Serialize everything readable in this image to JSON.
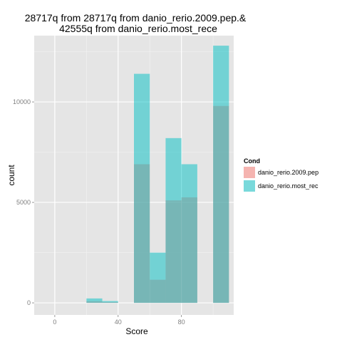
{
  "chart_data": {
    "type": "bar",
    "title_lines": [
      "28717q from  28717q from  danio_rerio.2009.pep.&",
      "42555q from danio_rerio.most_rece"
    ],
    "xlabel": "Score",
    "ylabel": "count",
    "xlim": [
      -13,
      113
    ],
    "ylim": [
      -600,
      13300
    ],
    "x_ticks": [
      0,
      40,
      80
    ],
    "y_ticks": [
      0,
      5000,
      10000
    ],
    "bin_width": 10,
    "overlay": "identity",
    "legend": {
      "title": "Cond",
      "position": "right",
      "entries": [
        "danio_rerio.2009.pep",
        "danio_rerio.most_rec"
      ]
    },
    "series": [
      {
        "name": "danio_rerio.2009.pep",
        "color": "#F8766D",
        "bins": [
          {
            "x0": 20,
            "x1": 30,
            "count": 80
          },
          {
            "x0": 30,
            "x1": 40,
            "count": 40
          },
          {
            "x0": 50,
            "x1": 60,
            "count": 6900
          },
          {
            "x0": 60,
            "x1": 70,
            "count": 1150
          },
          {
            "x0": 70,
            "x1": 80,
            "count": 5100
          },
          {
            "x0": 80,
            "x1": 90,
            "count": 5250
          },
          {
            "x0": 100,
            "x1": 110,
            "count": 9800
          }
        ]
      },
      {
        "name": "danio_rerio.most_rec",
        "color": "#00BFC4",
        "bins": [
          {
            "x0": 20,
            "x1": 30,
            "count": 220
          },
          {
            "x0": 30,
            "x1": 40,
            "count": 90
          },
          {
            "x0": 50,
            "x1": 60,
            "count": 11400
          },
          {
            "x0": 60,
            "x1": 70,
            "count": 2500
          },
          {
            "x0": 70,
            "x1": 80,
            "count": 8200
          },
          {
            "x0": 80,
            "x1": 90,
            "count": 6900
          },
          {
            "x0": 100,
            "x1": 110,
            "count": 12800
          }
        ]
      }
    ],
    "panel_background": "#E5E5E5",
    "grid": true
  }
}
